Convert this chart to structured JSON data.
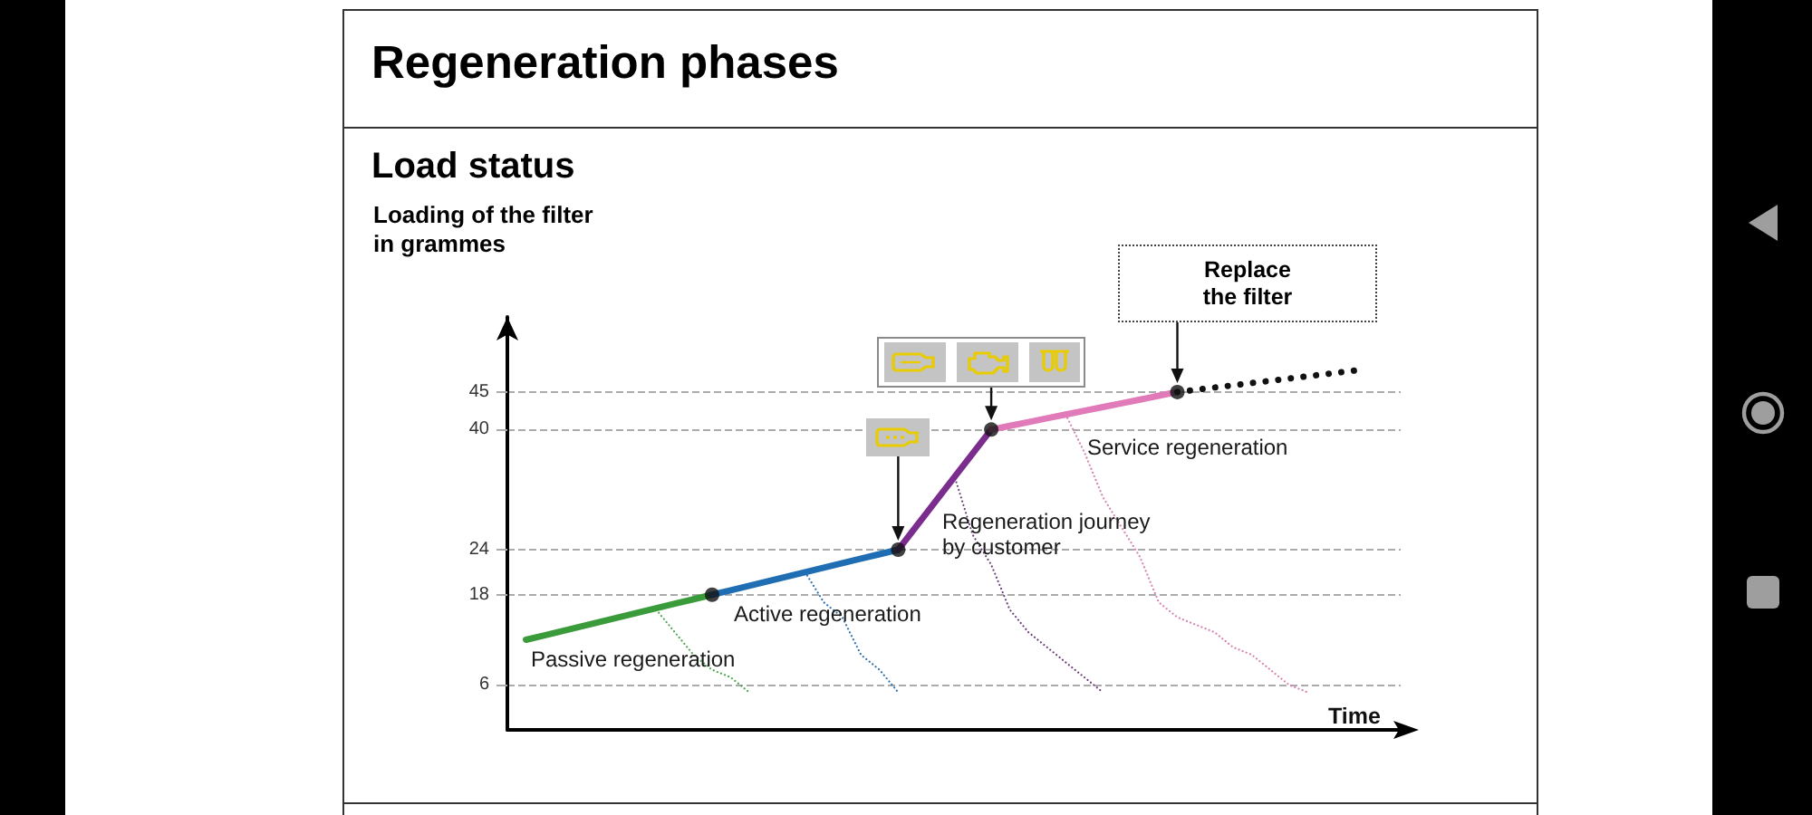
{
  "chart_data": {
    "type": "line",
    "title": "Regeneration phases",
    "subtitle": "Load status",
    "ylabel": "Loading of the filter in grammes",
    "xlabel": "Time",
    "annotations": [
      "Replace the filter"
    ],
    "categories": [
      null,
      null,
      null,
      null,
      null,
      null,
      null,
      null,
      null,
      null,
      null,
      null,
      null,
      null,
      null,
      null,
      null,
      null,
      null,
      null,
      null,
      null,
      null,
      null,
      null,
      null,
      null,
      null,
      null,
      null,
      null,
      null,
      null,
      null,
      null,
      null,
      null,
      null,
      null,
      null,
      null,
      null,
      null,
      null,
      null,
      null,
      null,
      null,
      null
    ],
    "ylim": [
      0,
      55
    ],
    "yticks": [
      6,
      18,
      24,
      40,
      45
    ],
    "grid": "y",
    "legend": false,
    "tick_labels": "y",
    "marker": "none",
    "series": [
      {
        "name": "Passive regeneration",
        "color": "#3a9b3a",
        "line_style": "solid",
        "values": [
          null,
          12,
          12.6,
          13.2,
          13.8,
          14.4,
          15,
          15.6,
          16.2,
          16.8,
          17.4,
          18,
          null,
          null,
          null,
          null,
          null,
          null,
          null,
          null,
          null,
          null,
          null,
          null,
          null,
          null,
          null,
          null,
          null,
          null,
          null,
          null,
          null,
          null,
          null,
          null,
          null,
          null,
          null,
          null,
          null,
          null,
          null,
          null,
          null,
          null,
          null,
          null,
          null
        ]
      },
      {
        "name": "Active regeneration",
        "color": "#1f6db3",
        "line_style": "solid",
        "values": [
          null,
          null,
          null,
          null,
          null,
          null,
          null,
          null,
          null,
          null,
          null,
          18,
          18.6,
          19.2,
          19.8,
          20.4,
          21,
          21.6,
          22.2,
          22.8,
          23.4,
          24,
          null,
          null,
          null,
          null,
          null,
          null,
          null,
          null,
          null,
          null,
          null,
          null,
          null,
          null,
          null,
          null,
          null,
          null,
          null,
          null,
          null,
          null,
          null,
          null,
          null,
          null,
          null
        ]
      },
      {
        "name": "Regeneration journey by customer",
        "color": "#7b2d8e",
        "line_style": "solid",
        "values": [
          null,
          null,
          null,
          null,
          null,
          null,
          null,
          null,
          null,
          null,
          null,
          null,
          null,
          null,
          null,
          null,
          null,
          null,
          null,
          null,
          null,
          24,
          27.2,
          30.4,
          33.6,
          36.8,
          40,
          null,
          null,
          null,
          null,
          null,
          null,
          null,
          null,
          null,
          null,
          null,
          null,
          null,
          null,
          null,
          null,
          null,
          null,
          null,
          null,
          null,
          null
        ]
      },
      {
        "name": "Service regeneration",
        "color": "#e07ab8",
        "line_style": "solid",
        "values": [
          null,
          null,
          null,
          null,
          null,
          null,
          null,
          null,
          null,
          null,
          null,
          null,
          null,
          null,
          null,
          null,
          null,
          null,
          null,
          null,
          null,
          null,
          null,
          null,
          null,
          null,
          40,
          40.5,
          41,
          41.5,
          42,
          42.5,
          43,
          43.5,
          44,
          44.5,
          45,
          null,
          null,
          null,
          null,
          null,
          null,
          null,
          null,
          null,
          null,
          null,
          null
        ]
      },
      {
        "color": "#111111",
        "line_style": "dotted",
        "values": [
          null,
          null,
          null,
          null,
          null,
          null,
          null,
          null,
          null,
          null,
          null,
          null,
          null,
          null,
          null,
          null,
          null,
          null,
          null,
          null,
          null,
          null,
          null,
          null,
          null,
          null,
          null,
          null,
          null,
          null,
          null,
          null,
          null,
          null,
          null,
          null,
          45,
          45.3,
          45.6,
          45.9,
          46.2,
          46.5,
          46.8,
          47.1,
          47.4,
          47.7,
          48,
          null,
          null
        ]
      },
      {
        "color": "#4ca64c",
        "line_style": "dotted",
        "values": [
          null,
          null,
          null,
          null,
          null,
          null,
          null,
          null,
          16,
          13,
          10,
          8,
          7,
          5,
          null,
          null,
          null,
          null,
          null,
          null,
          null,
          null,
          null,
          null,
          null,
          null,
          null,
          null,
          null,
          null,
          null,
          null,
          null,
          null,
          null,
          null,
          null,
          null,
          null,
          null,
          null,
          null,
          null,
          null,
          null,
          null,
          null,
          null,
          null
        ]
      },
      {
        "color": "#2a6fb0",
        "line_style": "dotted",
        "values": [
          null,
          null,
          null,
          null,
          null,
          null,
          null,
          null,
          null,
          null,
          null,
          null,
          null,
          null,
          null,
          null,
          21,
          17,
          15,
          10,
          8,
          5,
          null,
          null,
          null,
          null,
          null,
          null,
          null,
          null,
          null,
          null,
          null,
          null,
          null,
          null,
          null,
          null,
          null,
          null,
          null,
          null,
          null,
          null,
          null,
          null,
          null,
          null,
          null
        ]
      },
      {
        "color": "#6a3a78",
        "line_style": "dotted",
        "values": [
          null,
          null,
          null,
          null,
          null,
          null,
          null,
          null,
          null,
          null,
          null,
          null,
          null,
          null,
          null,
          null,
          null,
          null,
          null,
          null,
          null,
          null,
          null,
          null,
          34,
          26,
          22,
          16,
          13,
          11,
          9,
          7,
          5,
          null,
          null,
          null,
          null,
          null,
          null,
          null,
          null,
          null,
          null,
          null,
          null,
          null,
          null,
          null,
          null
        ]
      },
      {
        "color": "#d77fb0",
        "line_style": "dotted",
        "values": [
          null,
          null,
          null,
          null,
          null,
          null,
          null,
          null,
          null,
          null,
          null,
          null,
          null,
          null,
          null,
          null,
          null,
          null,
          null,
          null,
          null,
          null,
          null,
          null,
          null,
          null,
          null,
          null,
          null,
          null,
          42,
          37,
          31,
          27,
          23,
          17,
          15,
          14,
          13,
          11,
          10,
          8,
          6,
          5,
          null,
          null,
          null,
          null,
          null
        ]
      },
      {
        "type": "scatter",
        "color": "#111111",
        "marker": "circle",
        "values": [
          null,
          null,
          null,
          null,
          null,
          null,
          null,
          null,
          null,
          null,
          null,
          18,
          null,
          null,
          null,
          null,
          null,
          null,
          null,
          null,
          null,
          24,
          null,
          null,
          null,
          null,
          40,
          null,
          null,
          null,
          null,
          null,
          null,
          null,
          null,
          null,
          45,
          null,
          null,
          null,
          null,
          null,
          null,
          null,
          null,
          null,
          null,
          null,
          null
        ]
      }
    ]
  }
}
